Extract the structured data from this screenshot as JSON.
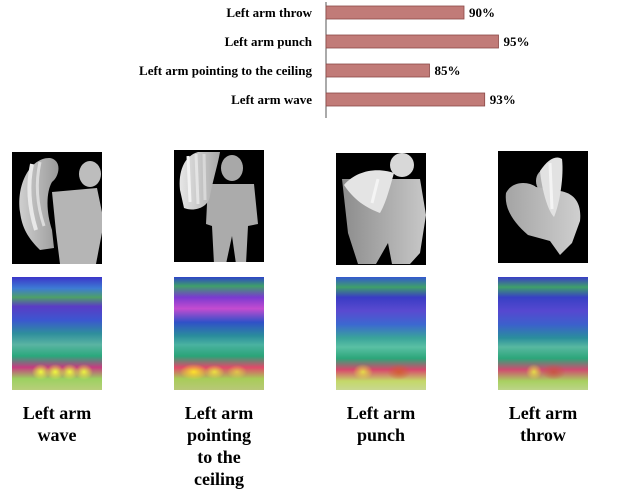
{
  "chart_data": {
    "type": "bar",
    "orientation": "horizontal",
    "categories": [
      "Left arm throw",
      "Left arm punch",
      "Left arm pointing to the ceiling",
      "Left arm wave"
    ],
    "values": [
      90,
      95,
      85,
      93
    ],
    "value_labels": [
      "90%",
      "95%",
      "85%",
      "93%"
    ],
    "bar_color": "#c17b78",
    "bar_edge_color": "#8b4a48",
    "title": "",
    "xlabel": "",
    "ylabel": "",
    "xlim": [
      70,
      100
    ]
  },
  "panels": [
    {
      "caption": "Left arm\nwave"
    },
    {
      "caption": "Left arm\npointing\nto the\nceiling"
    },
    {
      "caption": "Left arm\npunch"
    },
    {
      "caption": "Left arm\nthrow"
    }
  ]
}
